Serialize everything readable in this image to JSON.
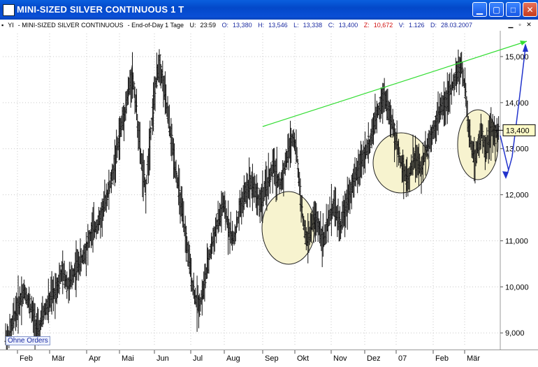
{
  "window": {
    "title": "MINI-SIZED SILVER CONTINUOUS 1 T",
    "buttons": [
      "minimize",
      "maximize",
      "close"
    ]
  },
  "infobar": {
    "symbol": "YI",
    "name": "MINI-SIZED SILVER CONTINUOUS",
    "period": "End-of-Day 1 Tage",
    "u_label": "U:",
    "u_value": "23:59",
    "o_label": "O:",
    "o_value": "13,380",
    "h_label": "H:",
    "h_value": "13,546",
    "l_label": "L:",
    "l_value": "13,338",
    "c_label": "C:",
    "c_value": "13,400",
    "z_label": "Z:",
    "z_value": "10,672",
    "v_label": "V:",
    "v_value": "1.126",
    "d_label": "D:",
    "d_value": "28.03.2007"
  },
  "badge": {
    "ohne_orders": "Ohne Orders"
  },
  "colors": {
    "title_bar": "#0a4fd6",
    "trend_line": "#33dd33",
    "arrow": "#2233cc",
    "circle_fill": "#f7f3cf",
    "last_price_box": "#fffbc8"
  },
  "chart_data": {
    "type": "ohlc",
    "last_price_label": "13,400",
    "y_ticks": [
      "15,000",
      "14,000",
      "13,000",
      "12,000",
      "11,000",
      "10,000",
      "9,000"
    ],
    "x_ticks": [
      "Feb",
      "Mär",
      "Apr",
      "Mai",
      "Jun",
      "Jul",
      "Aug",
      "Sep",
      "Okt",
      "Nov",
      "Dez",
      "07",
      "Feb",
      "Mär"
    ],
    "ylim": [
      8700,
      15500
    ],
    "series_close": [
      8.9,
      9.1,
      9.4,
      9.6,
      9.8,
      9.9,
      9.7,
      9.5,
      9.2,
      9.0,
      9.3,
      9.5,
      9.6,
      9.8,
      9.9,
      10.1,
      10.3,
      10.2,
      10.0,
      10.2,
      10.4,
      10.5,
      10.6,
      10.8,
      11.0,
      11.2,
      11.3,
      11.4,
      11.6,
      11.9,
      12.1,
      12.4,
      12.8,
      13.2,
      13.6,
      13.9,
      14.3,
      14.6,
      14.0,
      13.2,
      12.5,
      12.1,
      13.0,
      13.8,
      14.4,
      14.9,
      14.5,
      14.0,
      13.5,
      13.0,
      12.5,
      12.0,
      11.5,
      11.0,
      10.5,
      10.0,
      9.7,
      9.6,
      9.9,
      10.3,
      10.7,
      11.0,
      11.3,
      11.5,
      11.8,
      11.5,
      11.2,
      11.0,
      11.3,
      11.7,
      11.9,
      12.1,
      12.3,
      12.2,
      12.0,
      11.8,
      12.0,
      12.2,
      12.4,
      12.6,
      12.4,
      12.2,
      12.5,
      12.8,
      13.1,
      13.3,
      12.8,
      12.0,
      11.3,
      11.0,
      11.2,
      11.5,
      11.4,
      11.2,
      11.0,
      11.3,
      11.6,
      11.8,
      11.5,
      11.3,
      11.6,
      11.9,
      12.1,
      12.3,
      12.5,
      12.7,
      12.9,
      13.0,
      13.2,
      13.5,
      13.8,
      14.0,
      14.2,
      13.9,
      13.6,
      13.3,
      13.0,
      12.7,
      12.5,
      12.3,
      12.6,
      12.8,
      12.7,
      12.5,
      12.9,
      13.1,
      13.3,
      13.5,
      13.7,
      13.9,
      14.0,
      14.1,
      14.3,
      14.5,
      14.7,
      14.8,
      14.3,
      13.5,
      13.0,
      12.8,
      13.1,
      13.3,
      13.0,
      13.2,
      13.4,
      13.3,
      13.4
    ],
    "annotations": [
      {
        "type": "trendline",
        "label": "",
        "color": "green"
      },
      {
        "type": "ellipse",
        "label": ""
      },
      {
        "type": "ellipse",
        "label": ""
      },
      {
        "type": "ellipse",
        "label": ""
      },
      {
        "type": "arrow",
        "label": "",
        "color": "blue"
      }
    ]
  }
}
